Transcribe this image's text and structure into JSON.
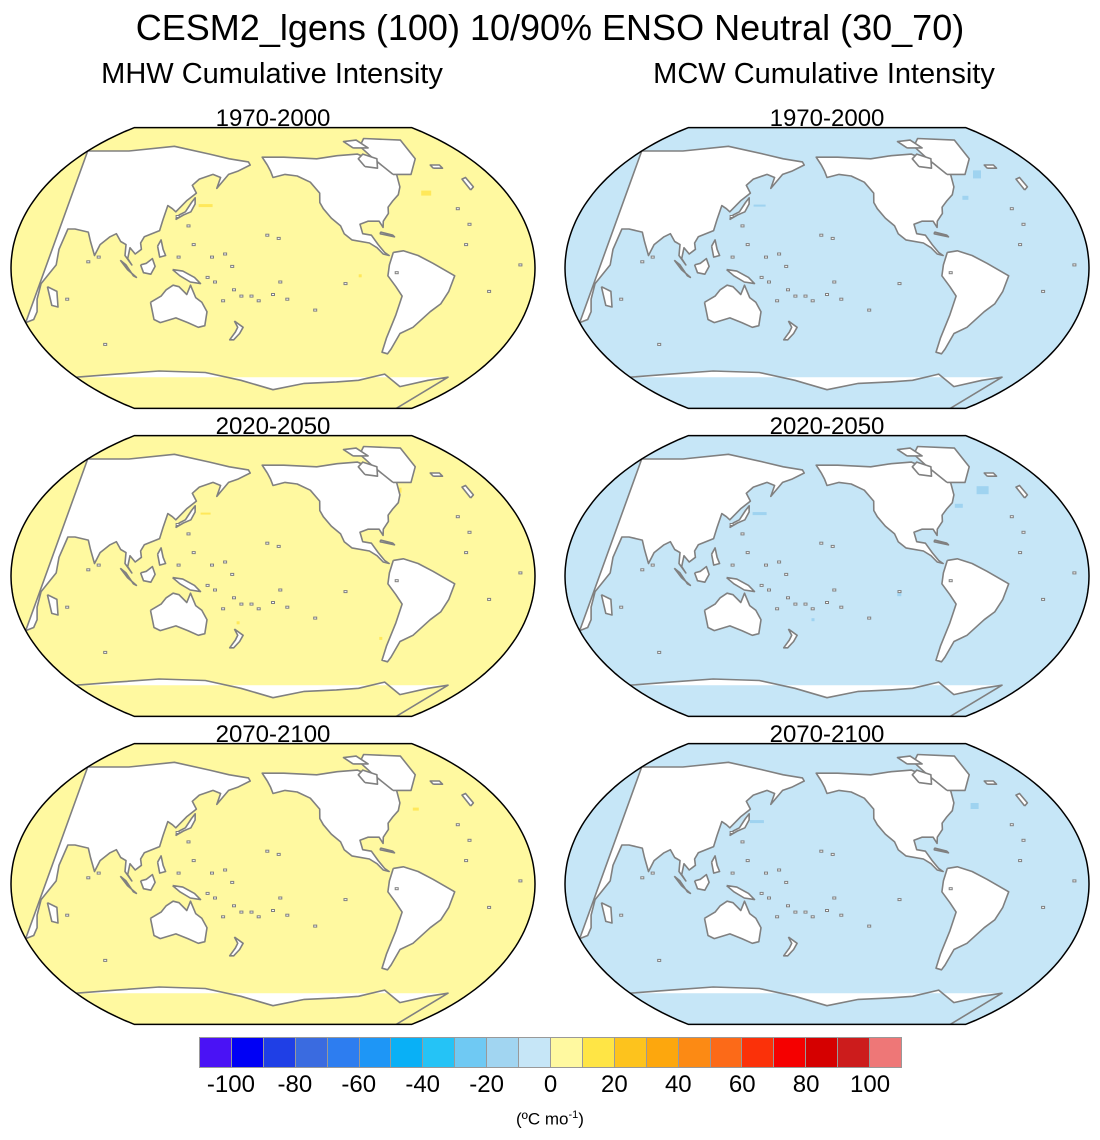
{
  "title": "CESM2_lgens (100) 10/90% ENSO Neutral (30_70)",
  "columns": [
    {
      "title": "MHW Cumulative Intensity",
      "ocean_color": "#fff9a0",
      "spot_color": "#ffe85a",
      "panels": [
        {
          "title": "1970-2000"
        },
        {
          "title": "2020-2050"
        },
        {
          "title": "2070-2100"
        }
      ]
    },
    {
      "title": "MCW Cumulative Intensity",
      "ocean_color": "#c6e6f7",
      "spot_color": "#9fd3f0",
      "panels": [
        {
          "title": "1970-2000"
        },
        {
          "title": "2020-2050"
        },
        {
          "title": "2070-2100"
        }
      ]
    }
  ],
  "colorbar": {
    "colors": [
      "#4a12f5",
      "#0000f5",
      "#1f3fe6",
      "#3a6be0",
      "#2d7df0",
      "#1e96f6",
      "#09b0f6",
      "#25c3f6",
      "#6fc9f3",
      "#a1d5f1",
      "#c6e6f7",
      "#fff9a0",
      "#ffe545",
      "#fdc31d",
      "#fda70d",
      "#fc8a14",
      "#fc6a18",
      "#fb3109",
      "#f50000",
      "#d50000",
      "#cc1c1c",
      "#ee7777"
    ],
    "ticks": [
      "-100",
      "-80",
      "-60",
      "-40",
      "-20",
      "0",
      "20",
      "40",
      "60",
      "80",
      "100"
    ],
    "units_base": "(ºC mo",
    "units_sup": "-1",
    "units_close": ")"
  },
  "land_color": "#ffffff",
  "coast_color": "#808080"
}
